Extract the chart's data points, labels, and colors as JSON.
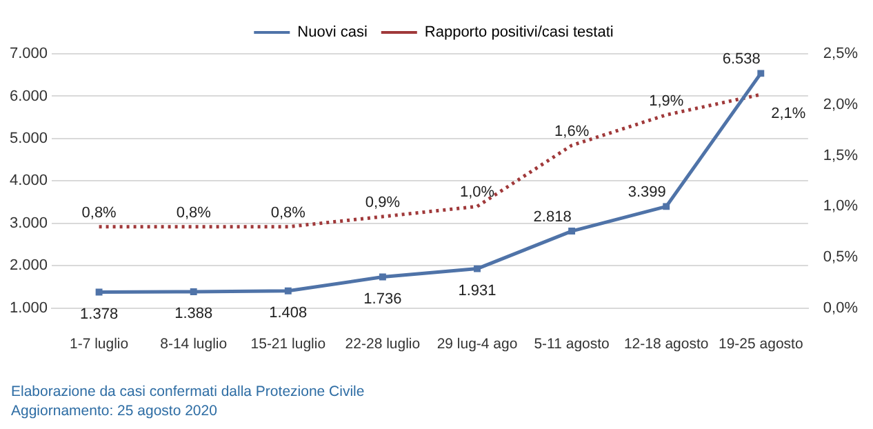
{
  "chart_data": {
    "type": "line",
    "categories": [
      "1-7 luglio",
      "8-14 luglio",
      "15-21 luglio",
      "22-28 luglio",
      "29 lug-4 ago",
      "5-11 agosto",
      "12-18 agosto",
      "19-25 agosto"
    ],
    "series": [
      {
        "name": "Nuovi casi",
        "color": "#4f73a8",
        "marker": "square",
        "line_style": "solid",
        "values": [
          1378,
          1388,
          1408,
          1736,
          1931,
          2818,
          3399,
          6538
        ],
        "value_labels": [
          "1.378",
          "1.388",
          "1.408",
          "1.736",
          "1.931",
          "2.818",
          "3.399",
          "6.538"
        ]
      },
      {
        "name": "Rapporto positivi/casi testati",
        "color": "#a0393a",
        "marker": "none",
        "line_style": "dotted",
        "axis": "y2",
        "values": [
          0.8,
          0.8,
          0.8,
          0.9,
          1.0,
          1.6,
          1.9,
          2.1
        ],
        "value_labels": [
          "0,8%",
          "0,8%",
          "0,8%",
          "0,9%",
          "1,0%",
          "1,6%",
          "1,9%",
          "2,1%"
        ]
      }
    ],
    "ylim": [
      1000,
      7000
    ],
    "yticks": [
      {
        "value": 1000,
        "label": "1.000"
      },
      {
        "value": 2000,
        "label": "2.000"
      },
      {
        "value": 3000,
        "label": "3.000"
      },
      {
        "value": 4000,
        "label": "4.000"
      },
      {
        "value": 5000,
        "label": "5.000"
      },
      {
        "value": 6000,
        "label": "6.000"
      },
      {
        "value": 7000,
        "label": "7.000"
      }
    ],
    "y2lim": [
      0,
      2.5
    ],
    "y2ticks": [
      {
        "value": 0,
        "label": "0,0%"
      },
      {
        "value": 0.5,
        "label": "0,5%"
      },
      {
        "value": 1,
        "label": "1,0%"
      },
      {
        "value": 1.5,
        "label": "1,5%"
      },
      {
        "value": 2,
        "label": "2,0%"
      },
      {
        "value": 2.5,
        "label": "2,5%"
      }
    ],
    "grid": "y",
    "legend": "top",
    "annotations": [
      "Elaborazione da casi confermati dalla Protezione Civile",
      "Aggiornamento: 25 agosto 2020"
    ]
  }
}
